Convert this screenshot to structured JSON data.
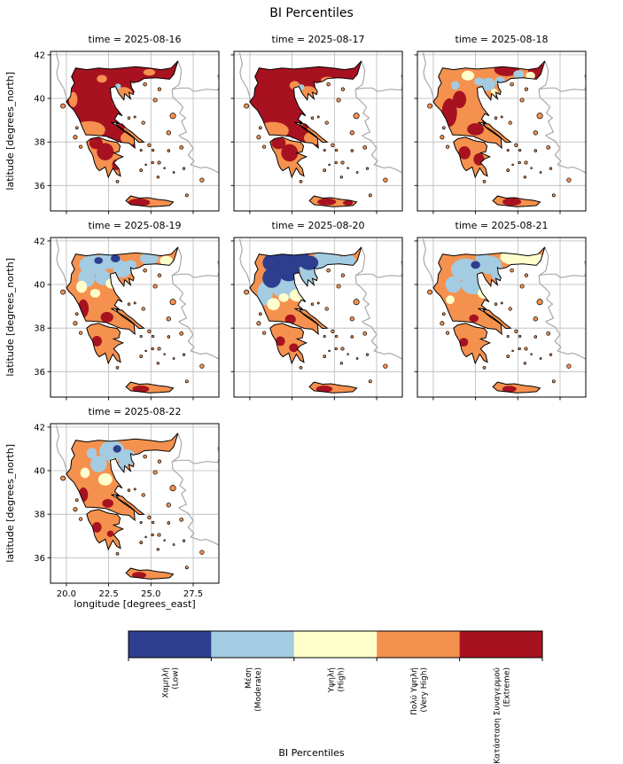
{
  "figure": {
    "title": "BI Percentiles",
    "xlabel": "longitude [degrees_east]",
    "ylabel": "latitude [degrees_north]",
    "colorbar_label": "BI Percentiles"
  },
  "chart_data": {
    "type": "heatmap",
    "title": "BI Percentiles",
    "facet_variable": "time",
    "xlabel": "longitude [degrees_east]",
    "ylabel": "latitude [degrees_north]",
    "x_ticks": [
      20.0,
      22.5,
      25.0,
      27.5
    ],
    "x_tick_labels": [
      "20.0",
      "22.5",
      "25.0",
      "27.5"
    ],
    "y_ticks": [
      36,
      38,
      40,
      42
    ],
    "y_tick_labels": [
      "36",
      "38",
      "40",
      "42"
    ],
    "xlim": [
      19.06,
      29.02
    ],
    "ylim": [
      34.83,
      42.16
    ],
    "grid": true,
    "legend": {
      "title": "BI Percentiles",
      "position": "bottom",
      "categories": [
        {
          "key": "low",
          "label_el": "Χαμηλή",
          "label_en": "(Low)",
          "color": "#2d3e8f"
        },
        {
          "key": "moderate",
          "label_el": "Μέση",
          "label_en": "(Moderate)",
          "color": "#a3cbe1"
        },
        {
          "key": "high",
          "label_el": "Υψηλή",
          "label_en": "(High)",
          "color": "#ffffcc"
        },
        {
          "key": "very_high",
          "label_el": "Πολύ Υψηλή",
          "label_en": "(Very High)",
          "color": "#f5914e"
        },
        {
          "key": "extreme",
          "label_el": "Κατάσταση Συναγερμού",
          "label_en": "(Extreme)",
          "color": "#a81220"
        }
      ]
    },
    "panels": [
      {
        "title": "time = 2025-08-16",
        "date": "2025-08-16",
        "regions": {
          "mainland": "extreme",
          "peloponnese": "very_high",
          "evia": "very_high",
          "crete": "very_high",
          "islands": "very_high"
        },
        "patches": [
          [
            21.35,
            38.55,
            0.95,
            0.4,
            "very_high"
          ],
          [
            23.75,
            38.18,
            0.55,
            0.3,
            "very_high"
          ],
          [
            23.4,
            40.12,
            0.55,
            0.4,
            "very_high"
          ],
          [
            20.4,
            39.95,
            0.25,
            0.35,
            "very_high"
          ],
          [
            22.1,
            40.9,
            0.3,
            0.18,
            "very_high"
          ],
          [
            24.9,
            41.2,
            0.35,
            0.15,
            "very_high"
          ],
          [
            23.0,
            39.8,
            0.25,
            0.18,
            "very_high"
          ],
          [
            23.05,
            40.55,
            0.18,
            0.13,
            "moderate"
          ],
          [
            22.3,
            37.55,
            0.5,
            0.4,
            "extreme"
          ],
          [
            21.75,
            37.95,
            0.4,
            0.28,
            "extreme"
          ],
          [
            22.95,
            36.95,
            0.25,
            0.25,
            "extreme"
          ],
          [
            23.25,
            38.7,
            0.22,
            0.15,
            "extreme"
          ],
          [
            24.3,
            35.22,
            0.65,
            0.18,
            "extreme"
          ]
        ]
      },
      {
        "title": "time = 2025-08-17",
        "date": "2025-08-17",
        "regions": {
          "mainland": "extreme",
          "peloponnese": "very_high",
          "evia": "very_high",
          "crete": "very_high",
          "islands": "very_high"
        },
        "patches": [
          [
            21.35,
            38.52,
            0.95,
            0.4,
            "very_high"
          ],
          [
            23.75,
            38.18,
            0.55,
            0.3,
            "very_high"
          ],
          [
            23.45,
            40.15,
            0.6,
            0.42,
            "very_high"
          ],
          [
            22.65,
            40.6,
            0.3,
            0.2,
            "very_high"
          ],
          [
            24.6,
            40.85,
            0.4,
            0.15,
            "very_high"
          ],
          [
            23.05,
            40.52,
            0.18,
            0.13,
            "moderate"
          ],
          [
            22.35,
            37.5,
            0.5,
            0.4,
            "extreme"
          ],
          [
            21.7,
            37.95,
            0.42,
            0.28,
            "extreme"
          ],
          [
            23.3,
            38.72,
            0.2,
            0.14,
            "extreme"
          ],
          [
            24.55,
            35.25,
            0.55,
            0.16,
            "extreme"
          ],
          [
            25.8,
            35.2,
            0.3,
            0.12,
            "extreme"
          ]
        ]
      },
      {
        "title": "time = 2025-08-18",
        "date": "2025-08-18",
        "regions": {
          "mainland": "very_high",
          "peloponnese": "very_high",
          "evia": "very_high",
          "crete": "very_high",
          "islands": "very_high"
        },
        "patches": [
          [
            20.95,
            39.35,
            0.45,
            0.65,
            "extreme"
          ],
          [
            21.55,
            39.95,
            0.4,
            0.4,
            "extreme"
          ],
          [
            24.35,
            41.32,
            0.75,
            0.3,
            "extreme"
          ],
          [
            26.2,
            41.25,
            0.6,
            0.35,
            "extreme"
          ],
          [
            22.5,
            38.58,
            0.5,
            0.28,
            "extreme"
          ],
          [
            23.2,
            39.0,
            0.3,
            0.2,
            "extreme"
          ],
          [
            21.85,
            37.5,
            0.35,
            0.3,
            "extreme"
          ],
          [
            22.7,
            37.2,
            0.32,
            0.28,
            "extreme"
          ],
          [
            24.65,
            35.25,
            0.55,
            0.18,
            "extreme"
          ],
          [
            23.25,
            40.65,
            0.42,
            0.3,
            "moderate"
          ],
          [
            23.95,
            40.8,
            0.3,
            0.2,
            "moderate"
          ],
          [
            25.05,
            41.1,
            0.32,
            0.2,
            "moderate"
          ],
          [
            22.7,
            40.78,
            0.28,
            0.18,
            "moderate"
          ],
          [
            21.3,
            40.6,
            0.25,
            0.2,
            "moderate"
          ],
          [
            22.05,
            41.05,
            0.38,
            0.22,
            "high"
          ],
          [
            25.75,
            41.05,
            0.28,
            0.18,
            "high"
          ],
          [
            23.6,
            40.3,
            0.2,
            0.15,
            "high"
          ]
        ]
      },
      {
        "title": "time = 2025-08-19",
        "date": "2025-08-19",
        "regions": {
          "mainland": "very_high",
          "peloponnese": "very_high",
          "evia": "very_high",
          "crete": "very_high",
          "islands": "very_high"
        },
        "patches": [
          [
            21.6,
            40.9,
            0.85,
            0.45,
            "moderate"
          ],
          [
            22.5,
            41.1,
            0.75,
            0.38,
            "moderate"
          ],
          [
            23.3,
            40.7,
            0.55,
            0.38,
            "moderate"
          ],
          [
            21.2,
            40.3,
            0.5,
            0.42,
            "moderate"
          ],
          [
            24.9,
            41.2,
            0.55,
            0.28,
            "moderate"
          ],
          [
            22.2,
            40.3,
            0.5,
            0.33,
            "moderate"
          ],
          [
            23.8,
            40.9,
            0.35,
            0.22,
            "moderate"
          ],
          [
            22.9,
            41.2,
            0.28,
            0.18,
            "low"
          ],
          [
            21.9,
            41.1,
            0.25,
            0.16,
            "low"
          ],
          [
            20.9,
            39.9,
            0.32,
            0.28,
            "high"
          ],
          [
            22.7,
            40.05,
            0.38,
            0.24,
            "high"
          ],
          [
            25.9,
            41.1,
            0.38,
            0.22,
            "high"
          ],
          [
            21.7,
            39.6,
            0.3,
            0.2,
            "high"
          ],
          [
            21.0,
            38.9,
            0.32,
            0.42,
            "extreme"
          ],
          [
            22.4,
            38.5,
            0.38,
            0.24,
            "extreme"
          ],
          [
            21.8,
            37.4,
            0.3,
            0.24,
            "extreme"
          ],
          [
            24.4,
            35.2,
            0.5,
            0.16,
            "extreme"
          ]
        ]
      },
      {
        "title": "time = 2025-08-20",
        "date": "2025-08-20",
        "regions": {
          "mainland": "very_high",
          "peloponnese": "very_high",
          "evia": "very_high",
          "crete": "very_high",
          "islands": "very_high"
        },
        "patches": [
          [
            22.2,
            39.9,
            0.95,
            0.55,
            "moderate"
          ],
          [
            23.7,
            40.7,
            0.75,
            0.45,
            "moderate"
          ],
          [
            24.7,
            41.1,
            0.75,
            0.38,
            "moderate"
          ],
          [
            20.9,
            39.6,
            0.45,
            0.55,
            "moderate"
          ],
          [
            23.3,
            40.2,
            0.48,
            0.38,
            "moderate"
          ],
          [
            25.8,
            41.1,
            0.45,
            0.28,
            "moderate"
          ],
          [
            24.3,
            41.35,
            0.5,
            0.2,
            "moderate"
          ],
          [
            21.7,
            41.0,
            0.95,
            0.5,
            "low"
          ],
          [
            22.7,
            41.2,
            0.85,
            0.42,
            "low"
          ],
          [
            23.5,
            41.0,
            0.55,
            0.33,
            "low"
          ],
          [
            21.3,
            40.3,
            0.55,
            0.45,
            "low"
          ],
          [
            22.3,
            40.6,
            0.65,
            0.45,
            "low"
          ],
          [
            22.8,
            39.5,
            0.45,
            0.28,
            "high"
          ],
          [
            21.4,
            39.1,
            0.38,
            0.28,
            "high"
          ],
          [
            22.0,
            39.4,
            0.3,
            0.2,
            "high"
          ],
          [
            22.4,
            38.4,
            0.32,
            0.22,
            "extreme"
          ],
          [
            21.8,
            37.4,
            0.28,
            0.22,
            "extreme"
          ],
          [
            22.6,
            37.1,
            0.28,
            0.2,
            "extreme"
          ],
          [
            24.4,
            35.2,
            0.48,
            0.16,
            "extreme"
          ]
        ]
      },
      {
        "title": "time = 2025-08-21",
        "date": "2025-08-21",
        "regions": {
          "mainland": "very_high",
          "peloponnese": "very_high",
          "evia": "very_high",
          "crete": "very_high",
          "islands": "very_high"
        },
        "patches": [
          [
            21.9,
            40.7,
            0.85,
            0.5,
            "moderate"
          ],
          [
            23.3,
            40.9,
            0.75,
            0.42,
            "moderate"
          ],
          [
            22.4,
            40.0,
            0.75,
            0.45,
            "moderate"
          ],
          [
            21.2,
            40.0,
            0.48,
            0.38,
            "moderate"
          ],
          [
            23.9,
            40.5,
            0.48,
            0.33,
            "moderate"
          ],
          [
            22.9,
            41.2,
            0.4,
            0.25,
            "moderate"
          ],
          [
            24.85,
            41.25,
            0.9,
            0.35,
            "high"
          ],
          [
            25.95,
            41.1,
            0.7,
            0.33,
            "high"
          ],
          [
            23.0,
            39.6,
            0.38,
            0.24,
            "high"
          ],
          [
            21.0,
            39.3,
            0.25,
            0.2,
            "high"
          ],
          [
            22.5,
            40.9,
            0.28,
            0.18,
            "low"
          ],
          [
            22.4,
            38.45,
            0.28,
            0.18,
            "extreme"
          ],
          [
            21.8,
            37.35,
            0.26,
            0.2,
            "extreme"
          ],
          [
            24.5,
            35.2,
            0.42,
            0.15,
            "extreme"
          ]
        ]
      },
      {
        "title": "time = 2025-08-22",
        "date": "2025-08-22",
        "regions": {
          "mainland": "very_high",
          "peloponnese": "very_high",
          "evia": "very_high",
          "crete": "very_high",
          "islands": "very_high"
        },
        "patches": [
          [
            22.7,
            40.9,
            0.75,
            0.48,
            "moderate"
          ],
          [
            23.6,
            40.6,
            0.52,
            0.38,
            "moderate"
          ],
          [
            21.9,
            40.3,
            0.48,
            0.38,
            "moderate"
          ],
          [
            23.2,
            40.1,
            0.38,
            0.28,
            "moderate"
          ],
          [
            21.5,
            40.8,
            0.3,
            0.25,
            "moderate"
          ],
          [
            22.3,
            39.6,
            0.42,
            0.28,
            "high"
          ],
          [
            21.1,
            39.9,
            0.28,
            0.24,
            "high"
          ],
          [
            22.8,
            40.4,
            0.25,
            0.18,
            "high"
          ],
          [
            23.0,
            41.0,
            0.24,
            0.17,
            "low"
          ],
          [
            21.0,
            38.9,
            0.28,
            0.33,
            "extreme"
          ],
          [
            22.45,
            38.5,
            0.33,
            0.2,
            "extreme"
          ],
          [
            21.8,
            37.4,
            0.28,
            0.24,
            "extreme"
          ],
          [
            22.6,
            37.1,
            0.2,
            0.15,
            "extreme"
          ],
          [
            24.3,
            35.2,
            0.42,
            0.15,
            "extreme"
          ]
        ]
      }
    ]
  }
}
